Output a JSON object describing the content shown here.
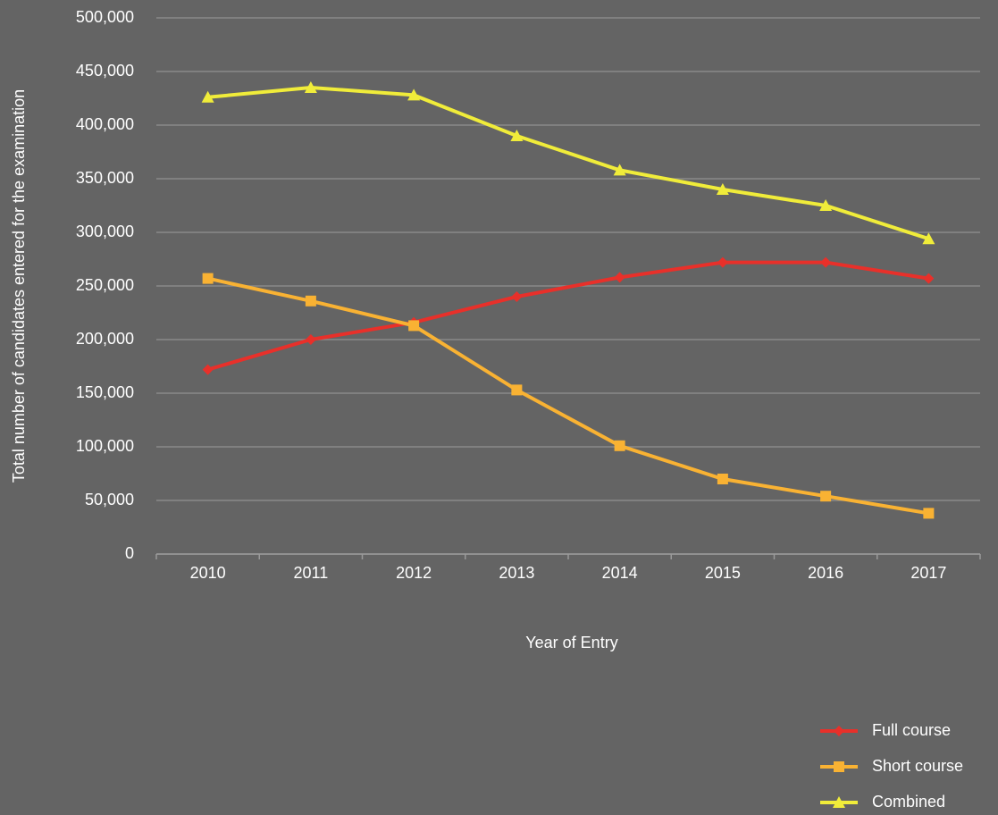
{
  "chart_data": {
    "type": "line",
    "x_label": "Year of Entry",
    "y_label": "Total  number of candidates entered for the examination",
    "categories": [
      "2010",
      "2011",
      "2012",
      "2013",
      "2014",
      "2015",
      "2016",
      "2017"
    ],
    "series": [
      {
        "name": "Full course",
        "color": "#e8302a",
        "marker": "diamond",
        "values": [
          172000,
          200000,
          216000,
          240000,
          258000,
          272000,
          272000,
          257000
        ]
      },
      {
        "name": "Short course",
        "color": "#f9b233",
        "marker": "square",
        "values": [
          257000,
          236000,
          213000,
          153000,
          101000,
          70000,
          54000,
          38000
        ]
      },
      {
        "name": "Combined",
        "color": "#f0ec3a",
        "marker": "triangle",
        "values": [
          426000,
          435000,
          428000,
          390000,
          358000,
          340000,
          325000,
          294000
        ]
      }
    ],
    "ylim": [
      0,
      500000
    ],
    "yticks": [
      0,
      {
        "value": 50000,
        "label": "50,000"
      },
      {
        "value": 100000,
        "label": "100,000"
      },
      {
        "value": 150000,
        "label": "150,000"
      },
      {
        "value": 200000,
        "label": "200,000"
      },
      {
        "value": 250000,
        "label": "250,000"
      },
      {
        "value": 300000,
        "label": "300,000"
      },
      {
        "value": 350000,
        "label": "350,000"
      },
      {
        "value": 400000,
        "label": "400,000"
      },
      {
        "value": 450000,
        "label": "450,000"
      },
      {
        "value": 500000,
        "label": "500,000"
      }
    ],
    "grid": true,
    "legend": "bottom-right"
  }
}
